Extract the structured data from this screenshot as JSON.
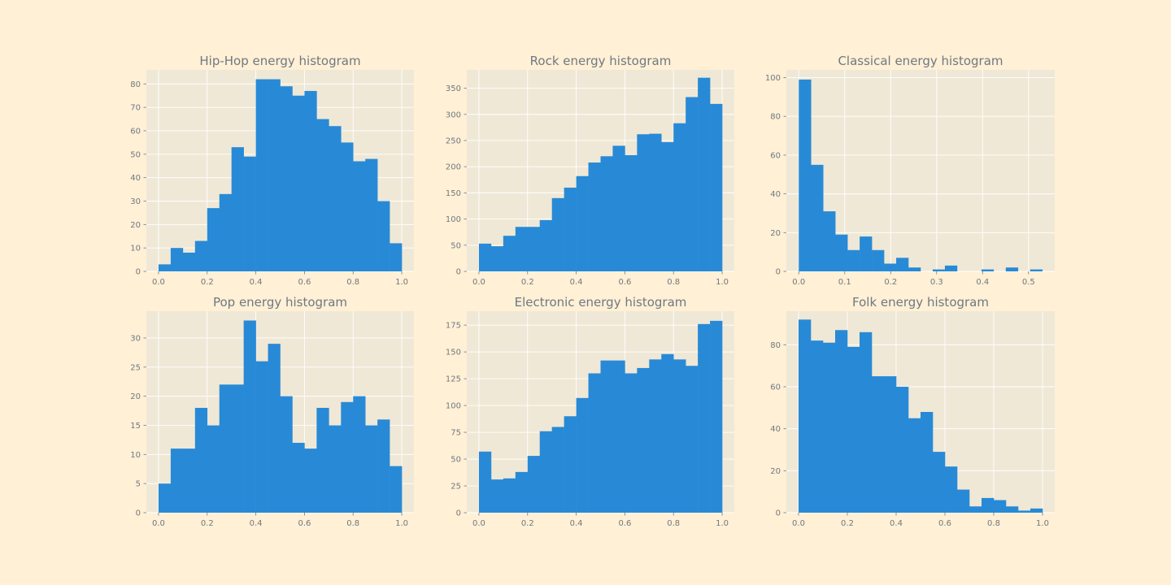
{
  "figure": {
    "background": "#fff0d6",
    "panel_background": "#efe8d6",
    "bar_color": "#288ad6",
    "text_color": "#707880",
    "layout": "2 rows x 3 columns"
  },
  "chart_data": [
    {
      "type": "bar",
      "title": "Hip-Hop energy histogram",
      "bins": {
        "start": 0.0,
        "width": 0.05,
        "count": 20
      },
      "values": [
        3,
        10,
        8,
        13,
        27,
        33,
        53,
        49,
        82,
        82,
        79,
        75,
        77,
        65,
        62,
        55,
        47,
        48,
        30,
        12
      ],
      "xlim": [
        -0.05,
        1.05
      ],
      "ylim": [
        0,
        86
      ],
      "xticks": [
        0.0,
        0.2,
        0.4,
        0.6,
        0.8,
        1.0
      ],
      "xtick_labels": [
        "0.0",
        "0.2",
        "0.4",
        "0.6",
        "0.8",
        "1.0"
      ],
      "yticks": [
        0,
        10,
        20,
        30,
        40,
        50,
        60,
        70,
        80
      ],
      "ytick_labels": [
        "0",
        "10",
        "20",
        "30",
        "40",
        "50",
        "60",
        "70",
        "80"
      ],
      "grid": true
    },
    {
      "type": "bar",
      "title": "Rock energy histogram",
      "bins": {
        "start": 0.0,
        "width": 0.05,
        "count": 20
      },
      "values": [
        53,
        48,
        68,
        85,
        85,
        98,
        140,
        160,
        182,
        208,
        220,
        240,
        222,
        262,
        263,
        247,
        283,
        333,
        370,
        320
      ],
      "xlim": [
        -0.05,
        1.05
      ],
      "ylim": [
        0,
        385
      ],
      "xticks": [
        0.0,
        0.2,
        0.4,
        0.6,
        0.8,
        1.0
      ],
      "xtick_labels": [
        "0.0",
        "0.2",
        "0.4",
        "0.6",
        "0.8",
        "1.0"
      ],
      "yticks": [
        0,
        50,
        100,
        150,
        200,
        250,
        300,
        350
      ],
      "ytick_labels": [
        "0",
        "50",
        "100",
        "150",
        "200",
        "250",
        "300",
        "350"
      ],
      "grid": true
    },
    {
      "type": "bar",
      "title": "Classical energy histogram",
      "bins": {
        "start": 0.0,
        "width": 0.0265,
        "count": 20
      },
      "values": [
        99,
        55,
        31,
        19,
        11,
        18,
        11,
        4,
        7,
        2,
        0,
        1,
        3,
        0,
        0,
        1,
        0,
        2,
        0,
        1
      ],
      "xlim": [
        -0.027,
        0.557
      ],
      "ylim": [
        0,
        104
      ],
      "xticks": [
        0.0,
        0.1,
        0.2,
        0.3,
        0.4,
        0.5
      ],
      "xtick_labels": [
        "0.0",
        "0.1",
        "0.2",
        "0.3",
        "0.4",
        "0.5"
      ],
      "yticks": [
        0,
        20,
        40,
        60,
        80,
        100
      ],
      "ytick_labels": [
        "0",
        "20",
        "40",
        "60",
        "80",
        "100"
      ],
      "grid": true
    },
    {
      "type": "bar",
      "title": "Pop energy histogram",
      "bins": {
        "start": 0.0,
        "width": 0.05,
        "count": 20
      },
      "values": [
        5,
        11,
        11,
        18,
        15,
        22,
        22,
        33,
        26,
        29,
        20,
        12,
        11,
        18,
        15,
        19,
        20,
        15,
        16,
        8
      ],
      "xlim": [
        -0.05,
        1.05
      ],
      "ylim": [
        0,
        34.6
      ],
      "xticks": [
        0.0,
        0.2,
        0.4,
        0.6,
        0.8,
        1.0
      ],
      "xtick_labels": [
        "0.0",
        "0.2",
        "0.4",
        "0.6",
        "0.8",
        "1.0"
      ],
      "yticks": [
        0,
        5,
        10,
        15,
        20,
        25,
        30
      ],
      "ytick_labels": [
        "0",
        "5",
        "10",
        "15",
        "20",
        "25",
        "30"
      ],
      "grid": true
    },
    {
      "type": "bar",
      "title": "Electronic energy histogram",
      "bins": {
        "start": 0.0,
        "width": 0.05,
        "count": 20
      },
      "values": [
        57,
        31,
        32,
        38,
        53,
        76,
        80,
        90,
        107,
        130,
        142,
        142,
        130,
        135,
        143,
        148,
        143,
        137,
        176,
        179
      ],
      "xlim": [
        -0.05,
        1.05
      ],
      "ylim": [
        0,
        188
      ],
      "xticks": [
        0.0,
        0.2,
        0.4,
        0.6,
        0.8,
        1.0
      ],
      "xtick_labels": [
        "0.0",
        "0.2",
        "0.4",
        "0.6",
        "0.8",
        "1.0"
      ],
      "yticks": [
        0,
        25,
        50,
        75,
        100,
        125,
        150,
        175
      ],
      "ytick_labels": [
        "0",
        "25",
        "50",
        "75",
        "100",
        "125",
        "150",
        "175"
      ],
      "grid": true
    },
    {
      "type": "bar",
      "title": "Folk energy histogram",
      "bins": {
        "start": 0.0,
        "width": 0.05,
        "count": 20
      },
      "values": [
        92,
        82,
        81,
        87,
        79,
        86,
        65,
        65,
        60,
        45,
        48,
        29,
        22,
        11,
        3,
        7,
        6,
        3,
        1,
        2
      ],
      "xlim": [
        -0.05,
        1.05
      ],
      "ylim": [
        0,
        96
      ],
      "xticks": [
        0.0,
        0.2,
        0.4,
        0.6,
        0.8,
        1.0
      ],
      "xtick_labels": [
        "0.0",
        "0.2",
        "0.4",
        "0.6",
        "0.8",
        "1.0"
      ],
      "yticks": [
        0,
        20,
        40,
        60,
        80
      ],
      "ytick_labels": [
        "0",
        "20",
        "40",
        "60",
        "80"
      ],
      "grid": true
    }
  ]
}
